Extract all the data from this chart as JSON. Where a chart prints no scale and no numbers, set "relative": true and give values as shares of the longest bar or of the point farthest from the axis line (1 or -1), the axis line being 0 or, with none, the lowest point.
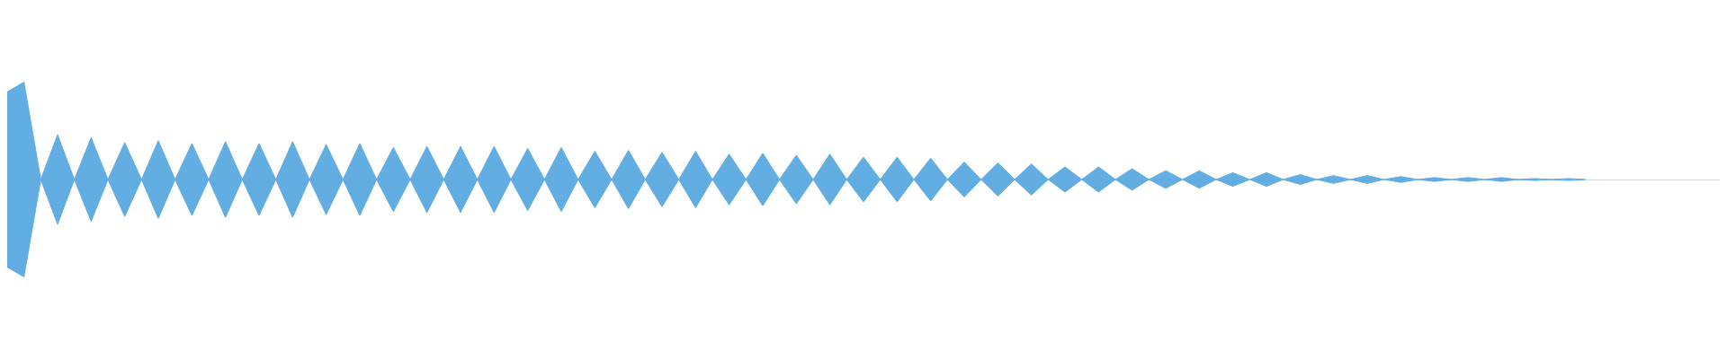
{
  "chart_data": {
    "type": "area",
    "relative": true,
    "grid": false,
    "marker": "none",
    "categories": [
      null,
      null,
      null,
      null,
      null,
      null,
      null,
      null,
      null,
      null,
      null,
      null,
      null,
      null,
      null,
      null,
      null,
      null,
      null,
      null,
      null,
      null,
      null,
      null,
      null,
      null,
      null,
      null,
      null,
      null,
      null,
      null,
      null,
      null,
      null,
      null,
      null,
      null,
      null,
      null,
      null,
      null,
      null,
      null,
      null,
      null,
      null,
      null,
      null,
      null,
      null,
      null,
      null,
      null,
      null,
      null,
      null,
      null,
      null,
      null,
      null,
      null,
      null,
      null,
      null,
      null,
      null,
      null,
      null,
      null,
      null,
      null,
      null,
      null,
      null,
      null,
      null,
      null,
      null,
      null,
      null,
      null,
      null,
      null,
      null,
      null,
      null,
      null,
      null,
      null,
      null,
      null,
      null,
      null,
      null,
      null,
      null,
      null,
      null,
      null,
      null,
      null,
      null
    ],
    "series": [
      {
        "color": "#62aee3",
        "values": [
          0.9,
          1,
          0,
          0.46,
          0,
          0.43,
          0,
          0.38,
          0,
          0.4,
          0,
          0.37,
          0,
          0.39,
          0,
          0.37,
          0,
          0.39,
          0,
          0.36,
          0,
          0.37,
          0,
          0.33,
          0,
          0.34,
          0,
          0.34,
          0,
          0.34,
          0,
          0.32,
          0,
          0.33,
          0,
          0.29,
          0,
          0.3,
          0,
          0.28,
          0,
          0.29,
          0,
          0.26,
          0,
          0.27,
          0,
          0.25,
          0,
          0.26,
          0,
          0.23,
          0,
          0.23,
          0,
          0.22,
          0,
          0.18,
          0,
          0.17,
          0,
          0.16,
          0,
          0.13,
          0,
          0.13,
          0,
          0.11,
          0,
          0.09,
          0,
          0.09,
          0,
          0.07,
          0,
          0.07,
          0,
          0.05,
          0,
          0.04,
          0,
          0.04,
          0,
          0.03,
          0,
          0.02,
          0,
          0.02,
          0,
          0.02,
          0,
          0.01,
          0,
          0.01,
          0,
          null,
          null,
          null,
          null,
          null,
          null,
          null,
          null
        ]
      },
      {
        "color": "#61ade2",
        "values": [
          -0.9,
          -1,
          0,
          -0.46,
          0,
          -0.43,
          0,
          -0.38,
          0,
          -0.4,
          0,
          -0.37,
          0,
          -0.39,
          0,
          -0.37,
          0,
          -0.39,
          0,
          -0.36,
          0,
          -0.37,
          0,
          -0.33,
          0,
          -0.34,
          0,
          -0.34,
          0,
          -0.34,
          0,
          -0.32,
          0,
          -0.33,
          0,
          -0.29,
          0,
          -0.3,
          0,
          -0.28,
          0,
          -0.29,
          0,
          -0.26,
          0,
          -0.27,
          0,
          -0.25,
          0,
          -0.26,
          0,
          -0.23,
          0,
          -0.23,
          0,
          -0.22,
          0,
          -0.18,
          0,
          -0.17,
          0,
          -0.16,
          0,
          -0.13,
          0,
          -0.13,
          0,
          -0.11,
          0,
          -0.09,
          0,
          -0.09,
          0,
          -0.07,
          0,
          -0.07,
          0,
          -0.05,
          0,
          -0.04,
          0,
          -0.04,
          0,
          -0.03,
          0,
          -0.02,
          0,
          -0.02,
          0,
          -0.02,
          0,
          -0.01,
          0,
          -0.01,
          0,
          null,
          null,
          null,
          null,
          null,
          null,
          null,
          null
        ]
      }
    ]
  }
}
